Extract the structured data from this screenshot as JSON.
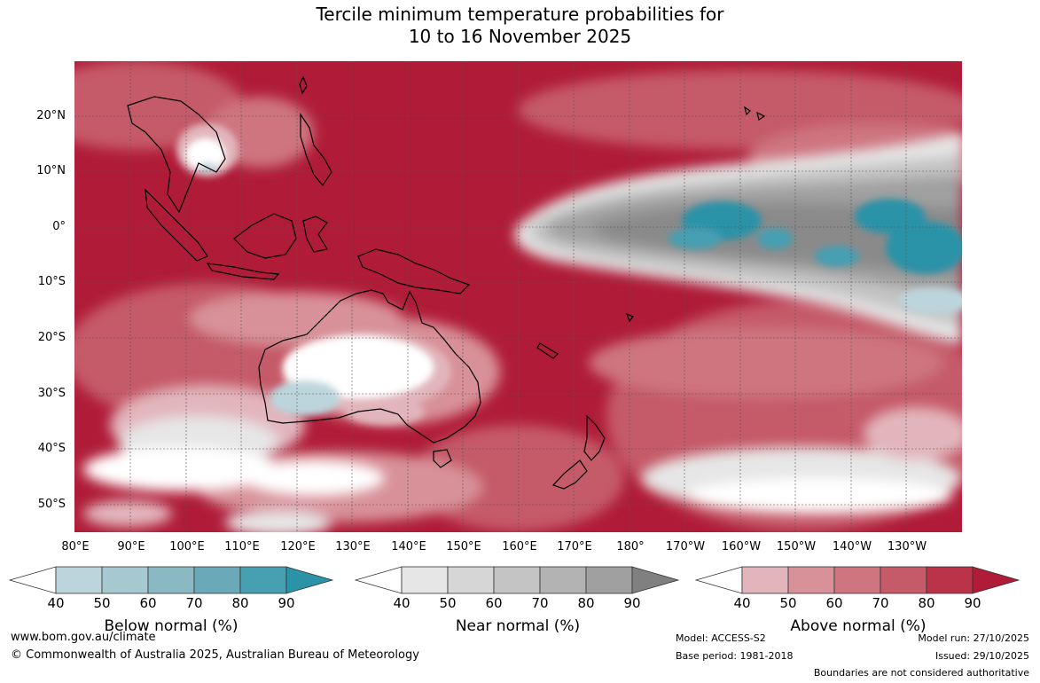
{
  "title": {
    "line1": "Tercile minimum temperature probabilities for",
    "line2": "10 to 16 November 2025"
  },
  "map": {
    "lat_labels": [
      "20°N",
      "10°N",
      "0°",
      "10°S",
      "20°S",
      "30°S",
      "40°S",
      "50°S"
    ],
    "lon_labels": [
      "80°E",
      "90°E",
      "100°E",
      "110°E",
      "120°E",
      "130°E",
      "140°E",
      "150°E",
      "160°E",
      "170°E",
      "180°",
      "170°W",
      "160°W",
      "150°W",
      "140°W",
      "130°W"
    ]
  },
  "colorbars": [
    {
      "title": "Below normal (%)",
      "ticks": [
        "40",
        "50",
        "60",
        "70",
        "80",
        "90"
      ],
      "colors": [
        "#ffffff",
        "#bcd5dc",
        "#a6c9d1",
        "#8bb9c3",
        "#6aa9b7",
        "#479fb2",
        "#2a93a8"
      ]
    },
    {
      "title": "Near normal (%)",
      "ticks": [
        "40",
        "50",
        "60",
        "70",
        "80",
        "90"
      ],
      "colors": [
        "#ffffff",
        "#e6e6e6",
        "#d6d6d6",
        "#c4c4c4",
        "#b3b3b3",
        "#a0a0a0",
        "#808080"
      ]
    },
    {
      "title": "Above normal (%)",
      "ticks": [
        "40",
        "50",
        "60",
        "70",
        "80",
        "90"
      ],
      "colors": [
        "#ffffff",
        "#e2b5bc",
        "#d89199",
        "#ce7580",
        "#c55a68",
        "#bb3349",
        "#b01c38"
      ]
    }
  ],
  "footer": {
    "website": "www.bom.gov.au/climate",
    "copyright": "© Commonwealth of Australia 2025, Australian Bureau of Meteorology",
    "model": "Model: ACCESS-S2",
    "base_period": "Base period: 1981-2018",
    "model_run": "Model run: 27/10/2025",
    "issued": "Issued: 29/10/2025",
    "disclaimer": "Boundaries are not considered authoritative"
  }
}
